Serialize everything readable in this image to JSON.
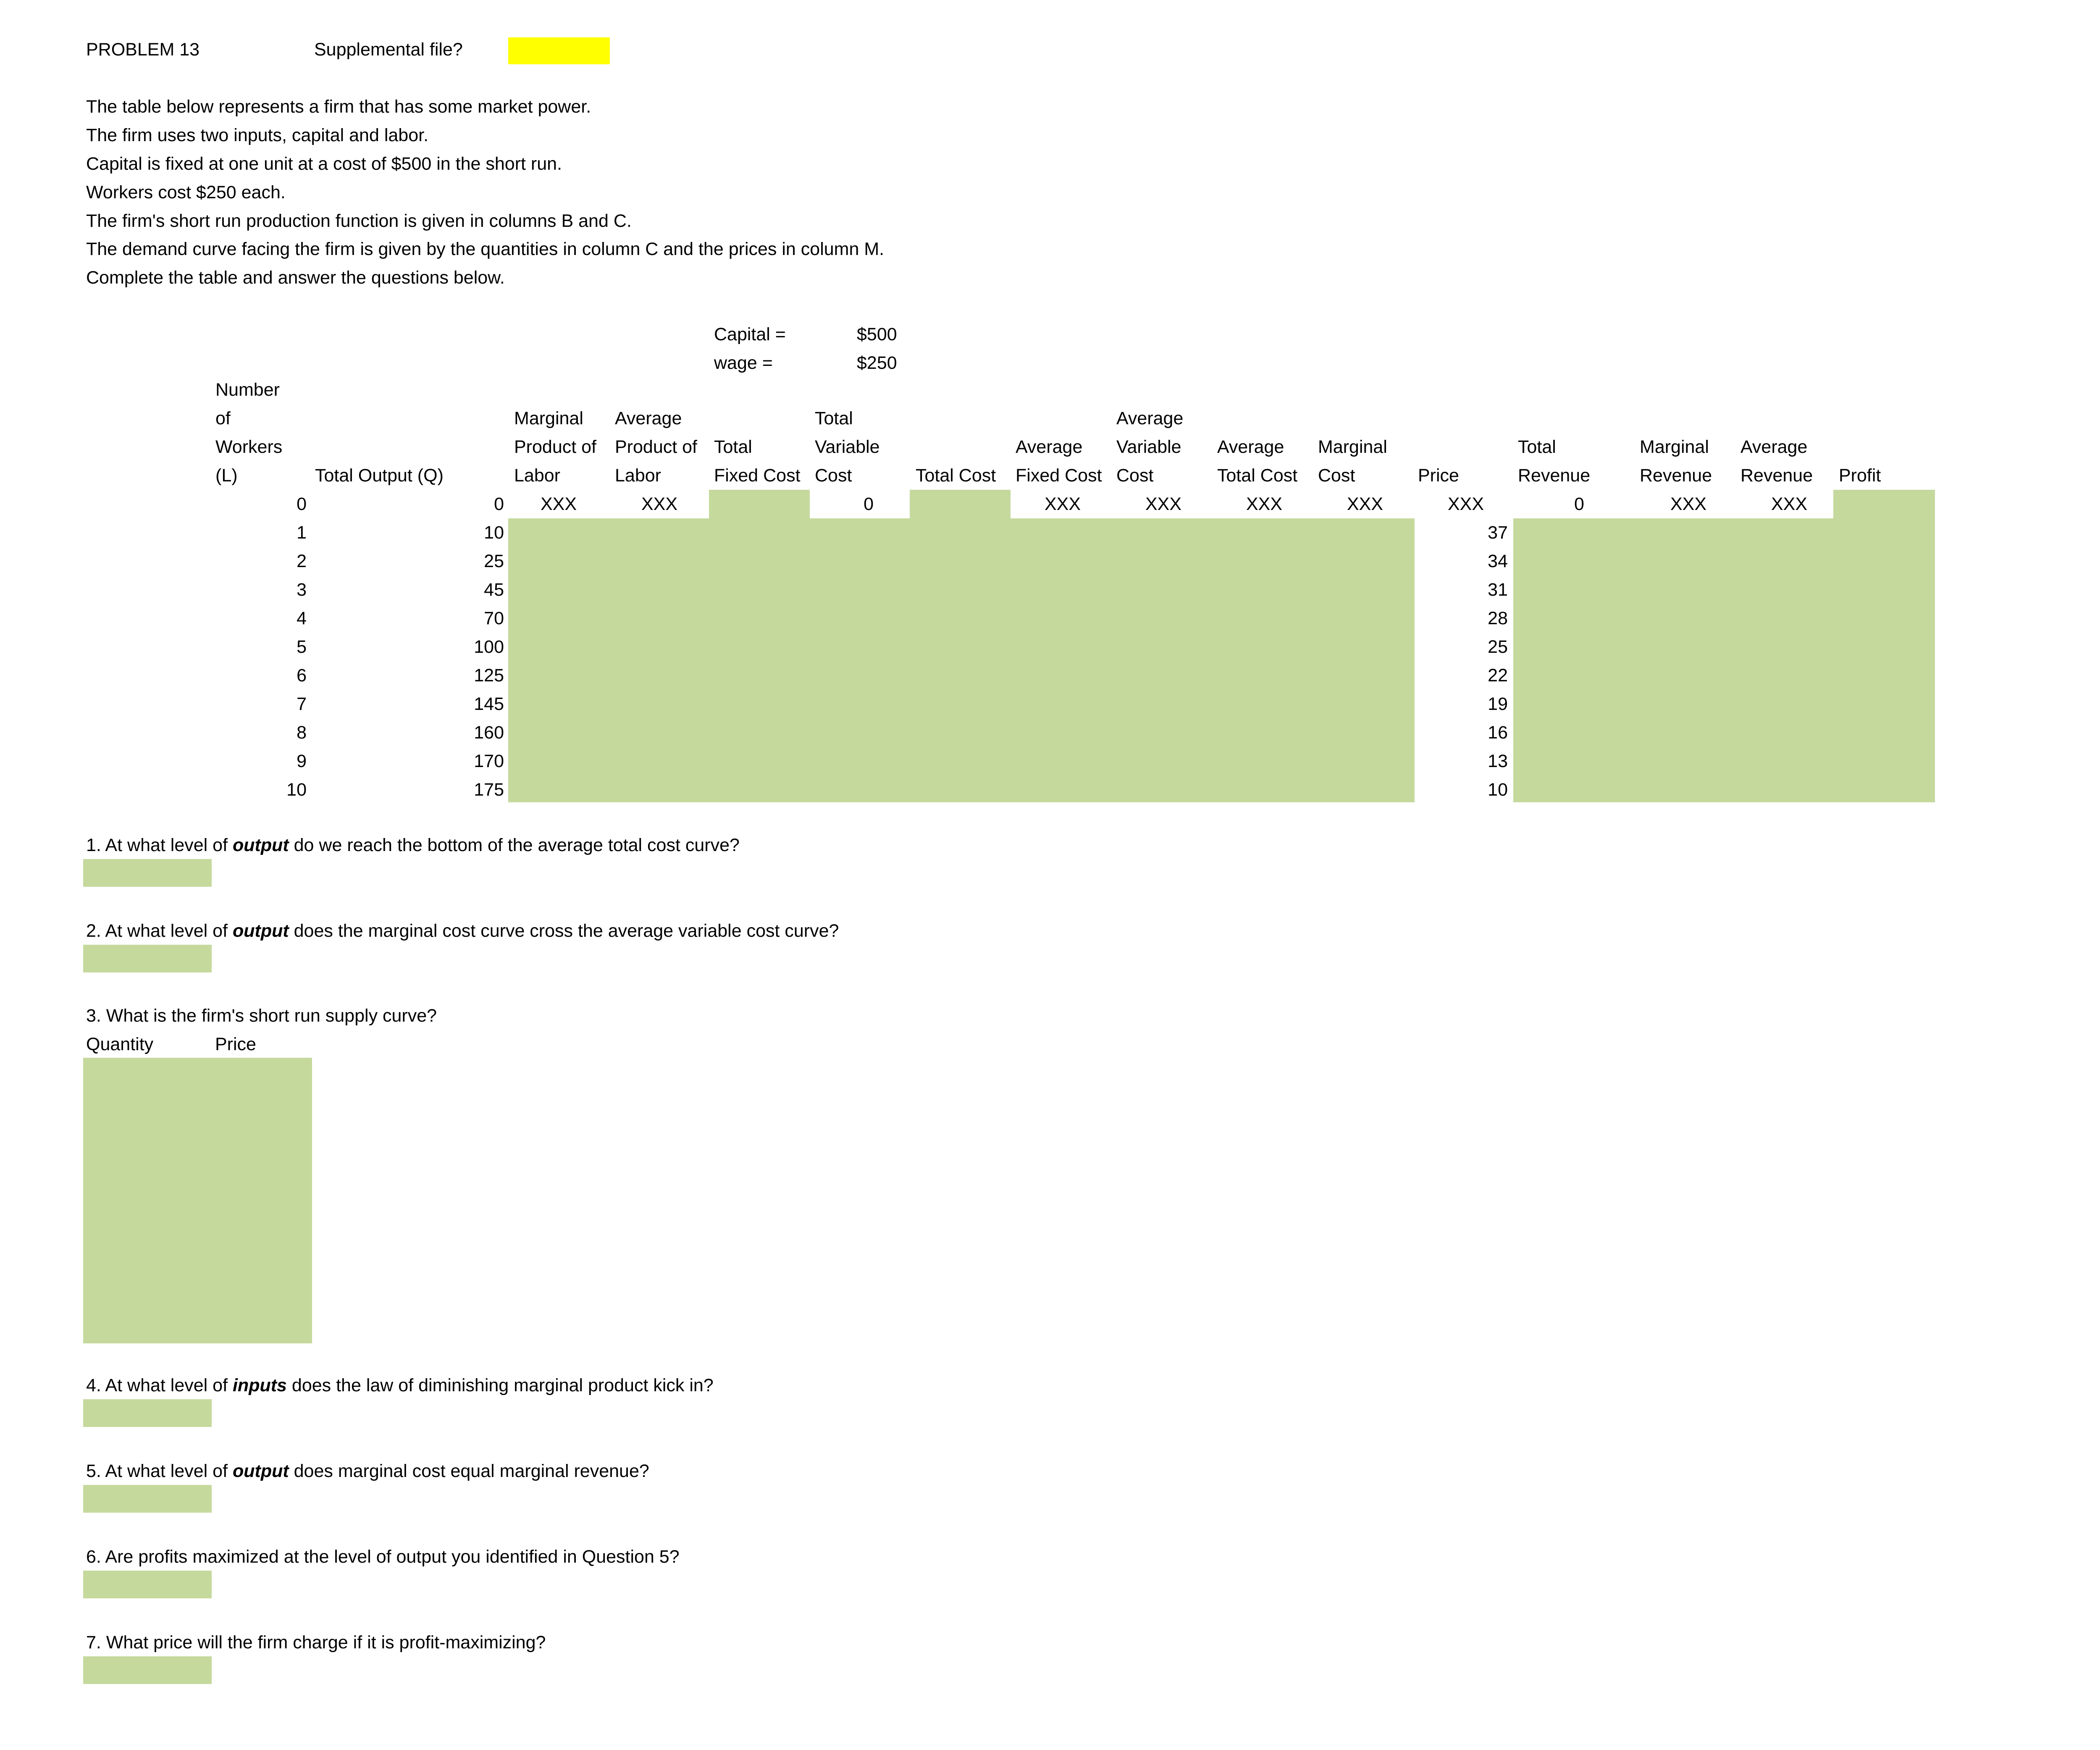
{
  "header": {
    "problem": "PROBLEM 13",
    "supplemental_label": "Supplemental file?"
  },
  "intro": [
    "The table below represents a firm that has some market power.",
    "The firm uses two inputs, capital and labor.",
    "Capital is fixed at one unit at a cost of $500 in the short run.",
    "Workers cost $250 each.",
    "The firm's short run production function is given in columns B and C.",
    "The demand curve facing the firm is given by the quantities in column C and the prices in column M.",
    "Complete the table and answer the questions below."
  ],
  "params": {
    "capital_label": "Capital =",
    "capital_value": "$500",
    "wage_label": "wage =",
    "wage_value": "$250"
  },
  "columns": {
    "workers": [
      "Number",
      "of",
      "Workers",
      "(L)"
    ],
    "output": [
      "Total Output (Q)"
    ],
    "mpl": [
      "Marginal",
      "Product of",
      "Labor"
    ],
    "apl": [
      "Average",
      "Product of",
      "Labor"
    ],
    "tfc": [
      "Total",
      "Fixed Cost"
    ],
    "tvc": [
      "Total",
      "Variable",
      "Cost"
    ],
    "tc": [
      "Total Cost"
    ],
    "afc": [
      "Average",
      "Fixed Cost"
    ],
    "avc": [
      "Average",
      "Variable",
      "Cost"
    ],
    "atc": [
      "Average",
      "Total Cost"
    ],
    "mc": [
      "Marginal",
      "Cost"
    ],
    "price": [
      "Price"
    ],
    "tr": [
      "Total",
      "Revenue"
    ],
    "mr": [
      "Marginal",
      "Revenue"
    ],
    "ar": [
      "Average",
      "Revenue"
    ],
    "profit": [
      "Profit"
    ]
  },
  "first_row": {
    "workers": "0",
    "output": "0",
    "mpl": "XXX",
    "apl": "XXX",
    "tvc": "0",
    "afc": "XXX",
    "avc": "XXX",
    "atc": "XXX",
    "mc": "XXX",
    "price": "XXX",
    "tr": "0",
    "mr": "XXX",
    "ar": "XXX"
  },
  "rows": [
    {
      "workers": "1",
      "output": "10",
      "price": "37"
    },
    {
      "workers": "2",
      "output": "25",
      "price": "34"
    },
    {
      "workers": "3",
      "output": "45",
      "price": "31"
    },
    {
      "workers": "4",
      "output": "70",
      "price": "28"
    },
    {
      "workers": "5",
      "output": "100",
      "price": "25"
    },
    {
      "workers": "6",
      "output": "125",
      "price": "22"
    },
    {
      "workers": "7",
      "output": "145",
      "price": "19"
    },
    {
      "workers": "8",
      "output": "160",
      "price": "16"
    },
    {
      "workers": "9",
      "output": "170",
      "price": "13"
    },
    {
      "workers": "10",
      "output": "175",
      "price": "10"
    }
  ],
  "questions": [
    {
      "pre": "1.  At what level of ",
      "em": "output",
      "post": "  do we reach the bottom of the average total cost curve?"
    },
    {
      "pre": "2.  At what level of ",
      "em": "output",
      "post": "  does the marginal cost curve cross the average variable cost curve?"
    },
    {
      "pre": "3.  What is the firm's short run supply curve?",
      "em": "",
      "post": ""
    },
    {
      "pre": "4.  At what level of ",
      "em": "inputs",
      "post": "  does the law of diminishing marginal product kick in?"
    },
    {
      "pre": "5.  At what level of ",
      "em": "output",
      "post": "  does marginal cost equal marginal revenue?"
    },
    {
      "pre": "6.  Are profits maximized at the level of output you identified in Question 5?",
      "em": "",
      "post": ""
    },
    {
      "pre": "7.  What price will the firm charge if it is profit-maximizing?",
      "em": "",
      "post": ""
    }
  ],
  "supply": {
    "quantity_label": "Quantity",
    "price_label": "Price"
  },
  "colors": {
    "answer_fill": "#c5d99d",
    "highlight": "#ffff00"
  }
}
